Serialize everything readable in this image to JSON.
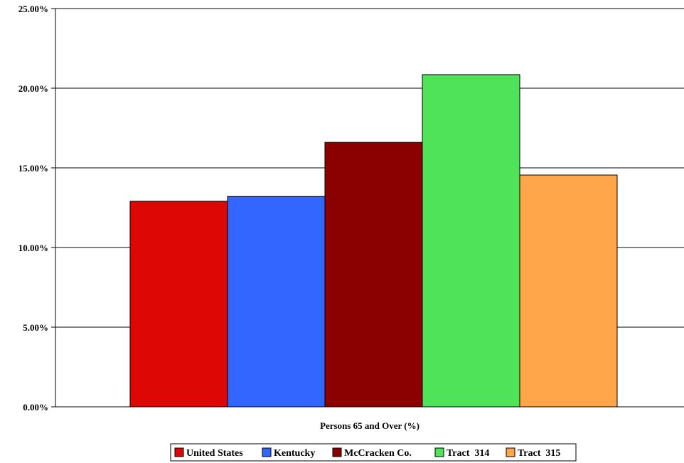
{
  "chart_data": {
    "type": "bar",
    "xlabel": "Persons 65 and Over (%)",
    "ylabel": "",
    "ylim": [
      0,
      25
    ],
    "y_ticks": [
      "0.00%",
      "5.00%",
      "10.00%",
      "15.00%",
      "20.00%",
      "25.00%"
    ],
    "grid": true,
    "legend_position": "bottom",
    "categories": [
      "Persons 65 and Over (%)"
    ],
    "series": [
      {
        "name": "United States",
        "values": [
          12.9
        ],
        "color": "#dd0806"
      },
      {
        "name": "Kentucky",
        "values": [
          13.2
        ],
        "color": "#3366ff"
      },
      {
        "name": "McCracken Co.",
        "values": [
          16.6
        ],
        "color": "#8b0000"
      },
      {
        "name": "Tract  314",
        "values": [
          20.85
        ],
        "color": "#4fe35a"
      },
      {
        "name": "Tract  315",
        "values": [
          14.55
        ],
        "color": "#ffa64a"
      }
    ]
  }
}
